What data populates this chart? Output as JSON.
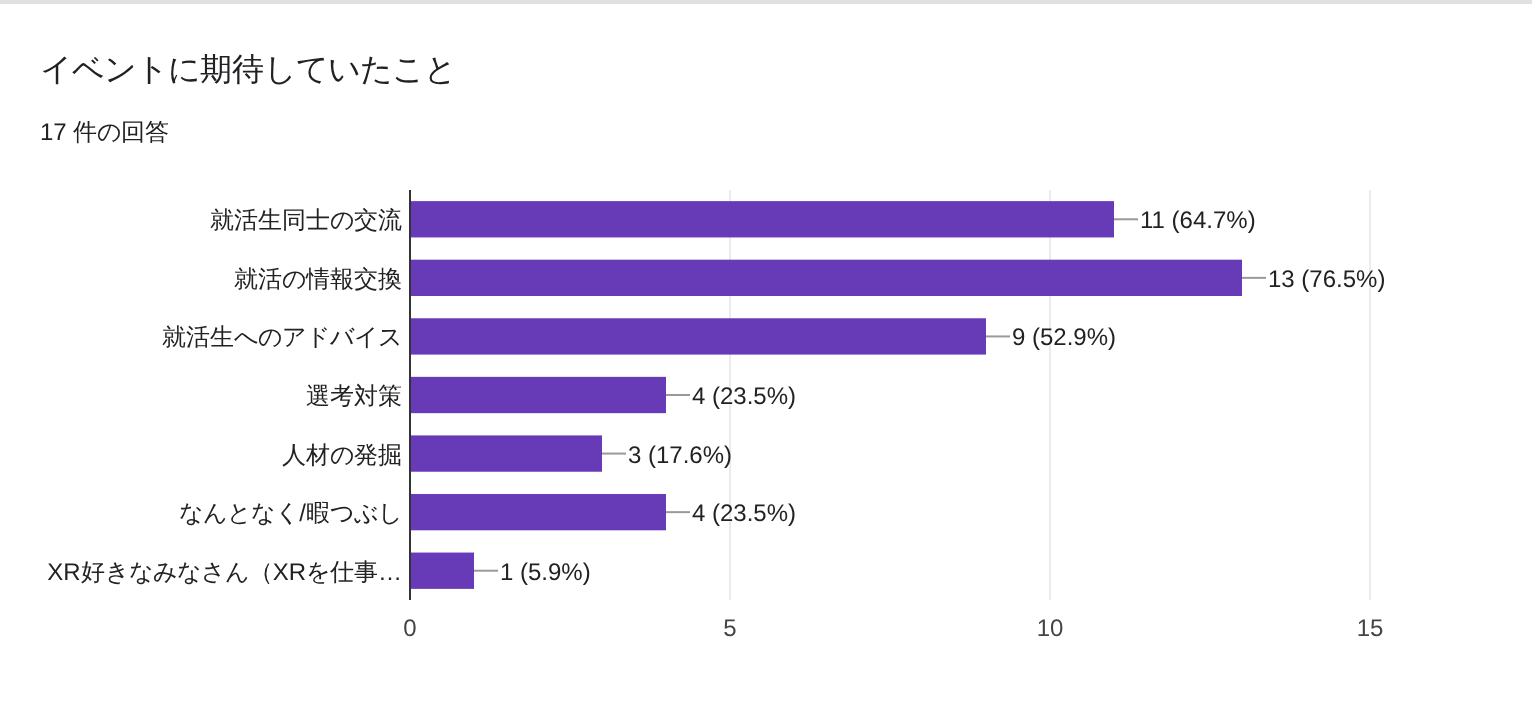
{
  "chart_data": {
    "type": "bar",
    "orientation": "horizontal",
    "title": "イベントに期待していたこと",
    "subtitle": "17 件の回答",
    "categories": [
      "就活生同士の交流",
      "就活の情報交換",
      "就活生へのアドバイス",
      "選考対策",
      "人材の発掘",
      "なんとなく/暇つぶし",
      "XR好きなみなさん（XRを仕事…"
    ],
    "values": [
      11,
      13,
      9,
      4,
      3,
      4,
      1
    ],
    "value_labels": [
      "11 (64.7%)",
      "13 (76.5%)",
      "9 (52.9%)",
      "4 (23.5%)",
      "3 (17.6%)",
      "4 (23.5%)",
      "1 (5.9%)"
    ],
    "color": "#673ab7",
    "xlim": [
      0,
      15
    ],
    "xticks": [
      0,
      5,
      10,
      15
    ],
    "grid": "x"
  }
}
